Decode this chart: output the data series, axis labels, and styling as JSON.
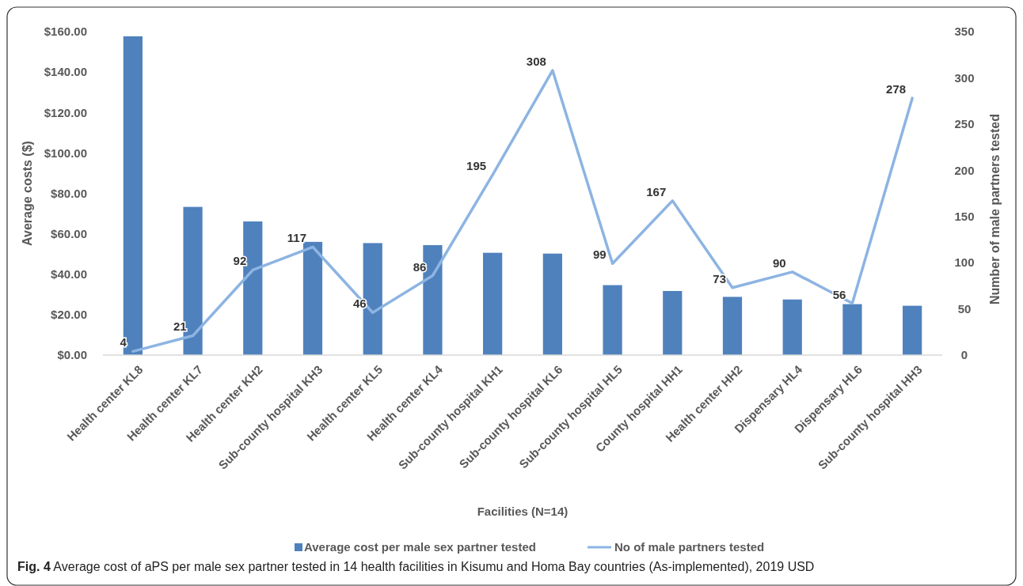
{
  "chart_data": {
    "type": "bar",
    "categories": [
      "Health center KL8",
      "Health center KL7",
      "Health center KH2",
      "Sub-county hospital KH3",
      "Health center KL5",
      "Health center KL4",
      "Sub-county hospital KH1",
      "Sub-county hospital KL6",
      "Sub-county hospital HL5",
      "County hospital HH1",
      "Health center HH2",
      "Dispensary HL4",
      "Dispensary HL6",
      "Sub-county hospital HH3"
    ],
    "series": [
      {
        "name": "Average cost per male sex partner tested",
        "color": "#4f81bd",
        "values": [
          157.7,
          73.3,
          66.1,
          56.0,
          55.4,
          54.4,
          50.6,
          50.2,
          34.6,
          31.7,
          28.8,
          27.5,
          25.2,
          24.4
        ]
      },
      {
        "name": "No of male partners tested",
        "type": "line",
        "axis": "y2",
        "color": "#8db4e2",
        "values": [
          4,
          21,
          92,
          117,
          46,
          86,
          195,
          308,
          99,
          167,
          73,
          90,
          56,
          278
        ],
        "value_labels": [
          "4",
          "21",
          "92",
          "117",
          "46",
          "86",
          "195",
          "308",
          "99",
          "167",
          "73",
          "90",
          "56",
          "278"
        ]
      }
    ],
    "xlabel": "Facilities  (N=14)",
    "ylabel": "Average costs ($)",
    "y2label": "Number of male partners tested",
    "ylim": [
      0,
      160
    ],
    "yticks": [
      {
        "value": 0,
        "label": "$0.00"
      },
      {
        "value": 20,
        "label": "$20.00"
      },
      {
        "value": 40,
        "label": "$40.00"
      },
      {
        "value": 60,
        "label": "$60.00"
      },
      {
        "value": 80,
        "label": "$80.00"
      },
      {
        "value": 100,
        "label": "$100.00"
      },
      {
        "value": 120,
        "label": "$120.00"
      },
      {
        "value": 140,
        "label": "$140.00"
      },
      {
        "value": 160,
        "label": "$160.00"
      }
    ],
    "y2lim": [
      0,
      350
    ],
    "y2ticks": [
      0,
      50,
      100,
      150,
      200,
      250,
      300,
      350
    ],
    "legend": "bottom",
    "grid": false,
    "annotations": [
      "Fig. 4  Average cost of aPS per male sex partner tested in 14 health facilities in Kisumu and Homa Bay countries (As-implemented), 2019 USD"
    ]
  }
}
